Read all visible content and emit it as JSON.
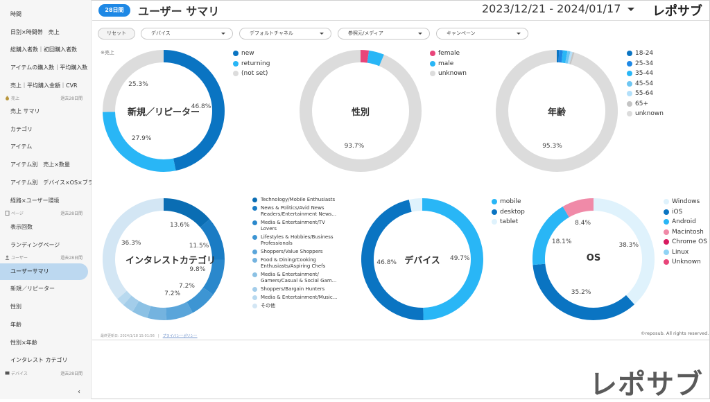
{
  "sidebar": {
    "items_top": [
      "時間",
      "日別×時間帯　売上",
      "総購入者数｜初回購入者数",
      "アイテムの購入数｜平均購入数",
      "売上｜平均購入金額｜CVR"
    ],
    "sec_sales": {
      "label": "売上",
      "right": "過去28日間"
    },
    "items_sales": [
      "売上 サマリ",
      "カテゴリ",
      "アイテム",
      "アイテム別　売上×数量",
      "アイテム別　デバイス×OS×ブラウザ",
      "経路×ユーザー環境"
    ],
    "sec_page": {
      "label": "ページ",
      "right": "過去28日間"
    },
    "items_page": [
      "表示回数",
      "ランディングページ"
    ],
    "sec_user": {
      "label": "ユーザー",
      "right": "過去28日間"
    },
    "items_user": [
      "ユーザーサマリ",
      "新規／リピーター",
      "性別",
      "年齢",
      "性別×年齢",
      "インタレスト カテゴリ"
    ],
    "sec_device": {
      "label": "デバイス",
      "right": "過去28日間"
    },
    "collapse": "‹"
  },
  "header": {
    "badge": "28日間",
    "title": "ユーザー サマリ",
    "daterange": "2023/12/21 - 2024/01/17",
    "logo": "レポサブ"
  },
  "filters": {
    "reset": "リセット",
    "selects": [
      "デバイス",
      "デフォルトチャネル",
      "参照元/メディア",
      "キャンペーン"
    ]
  },
  "note": "※売上",
  "footer": {
    "updated": "最終更新日: 2024/1/18 15:01:56",
    "privacy": "プライバシーポリシー",
    "copyright": "©reposub. All rights reserved.",
    "brand": "レポサブ"
  },
  "chart_data": [
    {
      "type": "pie",
      "title": "新規／リピーター",
      "categories": [
        "new",
        "returning",
        "(not set)"
      ],
      "values": [
        46.8,
        27.9,
        25.3
      ],
      "colors": [
        "#0a74c2",
        "#29b6f6",
        "#dcdcdc"
      ],
      "labels": [
        "46.8%",
        "27.9%",
        "25.3%"
      ]
    },
    {
      "type": "pie",
      "title": "性別",
      "categories": [
        "female",
        "male",
        "unknown"
      ],
      "values": [
        2.2,
        4.1,
        93.7
      ],
      "colors": [
        "#e8457a",
        "#29b6f6",
        "#dcdcdc"
      ],
      "labels": [
        "",
        "",
        "93.7%"
      ]
    },
    {
      "type": "pie",
      "title": "年齢",
      "categories": [
        "18-24",
        "25-34",
        "35-44",
        "45-54",
        "55-64",
        "65+",
        "unknown"
      ],
      "values": [
        0.6,
        1.0,
        1.2,
        0.8,
        0.6,
        0.5,
        95.3
      ],
      "colors": [
        "#0a74c2",
        "#1e88e5",
        "#29b6f6",
        "#6ec6f2",
        "#b3e0fa",
        "#c4c4c4",
        "#dcdcdc"
      ],
      "labels": [
        "",
        "",
        "",
        "",
        "",
        "",
        "95.3%"
      ]
    },
    {
      "type": "pie",
      "title": "インタレストカテゴリ",
      "categories": [
        "Technology/Mobile Enthusiasts",
        "News & Politics/Avid News Readers/Entertainment News...",
        "Media & Entertainment/TV Lovers",
        "Lifestyles & Hobbies/Business Professionals",
        "Shoppers/Value Shoppers",
        "Food & Dining/Cooking Enthusiasts/Aspiring Chefs",
        "Media & Entertainment/ Gamers/Casual & Social Gam...",
        "Shoppers/Bargain Hunters",
        "Media & Entertainment/Music...",
        "その他"
      ],
      "values": [
        13.6,
        11.5,
        9.8,
        7.2,
        7.2,
        5.0,
        4.2,
        3.0,
        2.2,
        36.3
      ],
      "colors": [
        "#0a6db3",
        "#1a7cc4",
        "#2a88cc",
        "#3d95d3",
        "#5aa5da",
        "#74b3df",
        "#8cc1e4",
        "#a3cdea",
        "#b8d9ef",
        "#d3e6f4"
      ],
      "labels": [
        "13.6%",
        "11.5%",
        "9.8%",
        "7.2%",
        "7.2%",
        "",
        "",
        "",
        "",
        "36.3%"
      ]
    },
    {
      "type": "pie",
      "title": "デバイス",
      "categories": [
        "mobile",
        "desktop",
        "tablet"
      ],
      "values": [
        49.7,
        46.8,
        3.5
      ],
      "colors": [
        "#29b6f6",
        "#0a74c2",
        "#dff2fc"
      ],
      "labels": [
        "49.7%",
        "46.8%",
        ""
      ]
    },
    {
      "type": "pie",
      "title": "OS",
      "categories": [
        "Windows",
        "iOS",
        "Android",
        "Macintosh",
        "Chrome OS",
        "Linux",
        "Unknown"
      ],
      "values": [
        38.3,
        35.2,
        18.1,
        8.4,
        0,
        0,
        0
      ],
      "colors": [
        "#dff2fc",
        "#0a74c2",
        "#29b6f6",
        "#f08aa8",
        "#d81b60",
        "#8fd3f5",
        "#e8457a"
      ],
      "labels": [
        "38.3%",
        "35.2%",
        "18.1%",
        "8.4%",
        "",
        "",
        ""
      ]
    }
  ]
}
